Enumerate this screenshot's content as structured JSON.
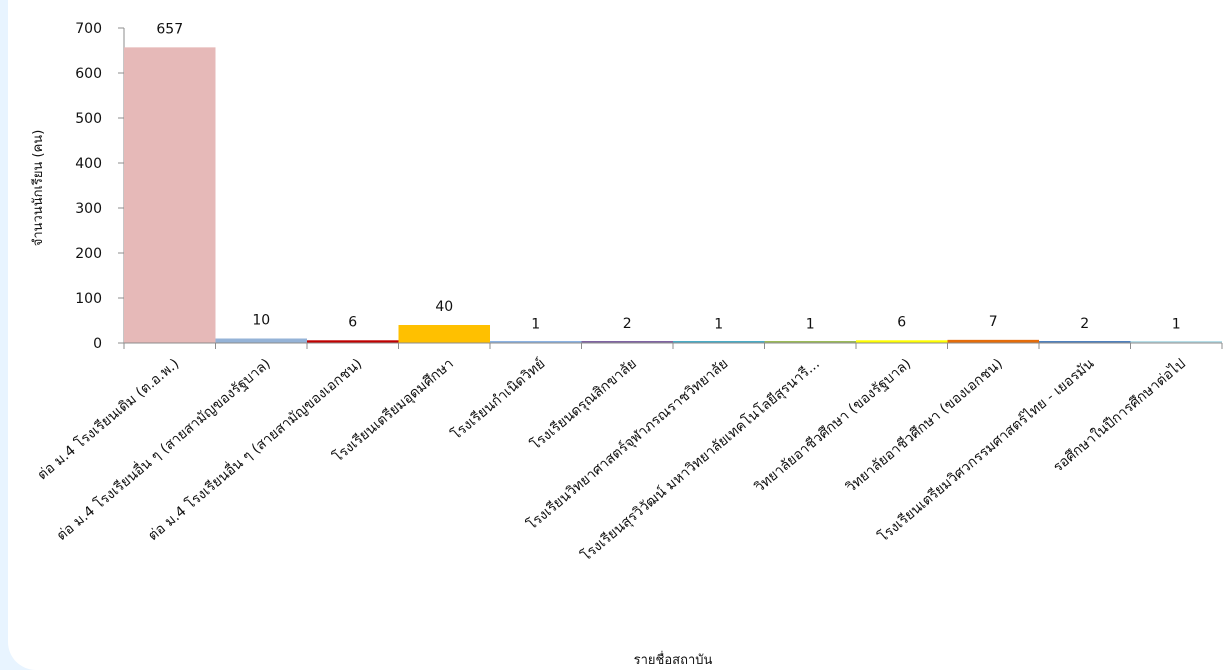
{
  "chart_data": {
    "type": "bar",
    "title": "",
    "xlabel": "รายชื่อสถาบัน",
    "ylabel": "จำนวนนักเรียน (คน)",
    "ylim": [
      0,
      700
    ],
    "yticks": [
      0,
      100,
      200,
      300,
      400,
      500,
      600,
      700
    ],
    "grid": false,
    "categories": [
      "ต่อ ม.4 โรงเรียนเดิม (ต.อ.พ.)",
      "ต่อ ม.4 โรงเรียนอื่น ๆ (สายสามัญของรัฐบาล)",
      "ต่อ ม.4 โรงเรียนอื่น ๆ (สายสามัญของเอกชน)",
      "โรงเรียนเตรียมอุดมศึกษา",
      "โรงเรียนกำเนิดวิทย์",
      "โรงเรียนดรุณสิกขาลัย",
      "โรงเรียนวิทยาศาสตร์จุฬาภรณราชวิทยาลัย",
      "โรงเรียนสุรวิวัฒน์ มหาวิทยาลัยเทคโนโลยีสุรนารี...",
      "วิทยาลัยอาชีวศึกษา (ของรัฐบาล)",
      "วิทยาลัยอาชีวศึกษา (ของเอกชน)",
      "โรงเรียนเตรียมวิศวกรรมศาสตร์ไทย - เยอรมัน",
      "รอศึกษาในปีการศึกษาต่อไป"
    ],
    "values": [
      657,
      10,
      6,
      40,
      1,
      2,
      1,
      1,
      6,
      7,
      2,
      1
    ],
    "colors": [
      "#e6b9b8",
      "#95b3d7",
      "#c00000",
      "#ffc000",
      "#8db3e2",
      "#8064a2",
      "#4bacc6",
      "#9bbb59",
      "#ffff00",
      "#e46c0a",
      "#4f81bd",
      "#b7dee8"
    ]
  }
}
